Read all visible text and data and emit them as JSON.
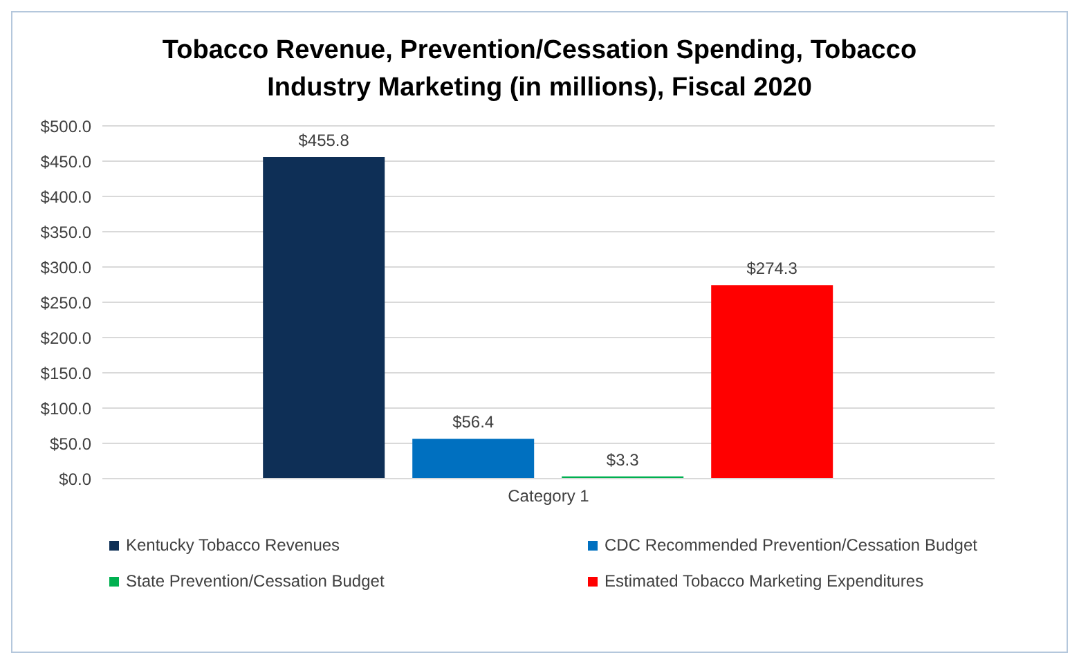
{
  "chart_data": {
    "type": "bar",
    "title": "Tobacco Revenue, Prevention/Cessation Spending, Tobacco Industry Marketing (in millions), Fiscal 2020",
    "categories": [
      "Category 1"
    ],
    "series": [
      {
        "name": "Kentucky Tobacco Revenues",
        "color": "#0e2f56",
        "values": [
          455.8
        ],
        "value_labels": [
          "$455.8"
        ]
      },
      {
        "name": "CDC Recommended Prevention/Cessation Budget",
        "color": "#0070c0",
        "values": [
          56.4
        ],
        "value_labels": [
          "$56.4"
        ]
      },
      {
        "name": "State Prevention/Cessation Budget",
        "color": "#00b050",
        "values": [
          3.3
        ],
        "value_labels": [
          "$3.3"
        ]
      },
      {
        "name": "Estimated Tobacco Marketing Expenditures",
        "color": "#ff0000",
        "values": [
          274.3
        ],
        "value_labels": [
          "$274.3"
        ]
      }
    ],
    "ylim": [
      0,
      500
    ],
    "yticks": [
      {
        "value": 0,
        "label": "$0.0"
      },
      {
        "value": 50,
        "label": "$50.0"
      },
      {
        "value": 100,
        "label": "$100.0"
      },
      {
        "value": 150,
        "label": "$150.0"
      },
      {
        "value": 200,
        "label": "$200.0"
      },
      {
        "value": 250,
        "label": "$250.0"
      },
      {
        "value": 300,
        "label": "$300.0"
      },
      {
        "value": 350,
        "label": "$350.0"
      },
      {
        "value": 400,
        "label": "$400.0"
      },
      {
        "value": 450,
        "label": "$450.0"
      },
      {
        "value": 500,
        "label": "$500.0"
      }
    ],
    "grid": "y",
    "legend": "bottom"
  }
}
